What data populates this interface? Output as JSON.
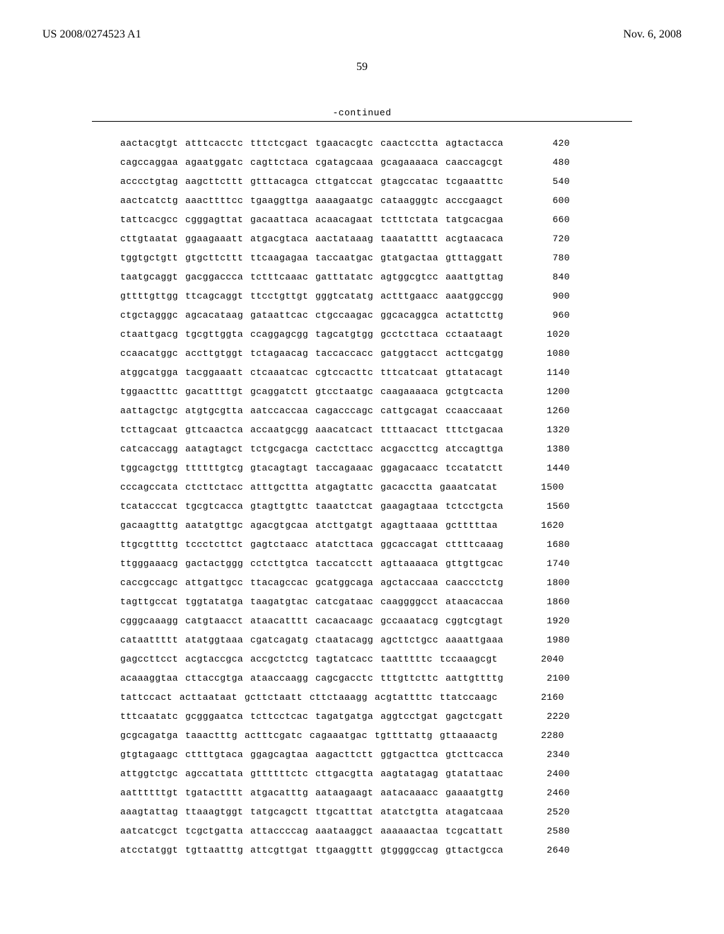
{
  "header": {
    "pub_num": "US 2008/0274523 A1",
    "pub_date": "Nov. 6, 2008"
  },
  "page_number": "59",
  "continued_label": "-continued",
  "sequence": {
    "font_family": "Courier New",
    "font_size_pt": 10,
    "color": "#000000",
    "rows": [
      {
        "g": [
          "aactacgtgt",
          "atttcacctc",
          "tttctcgact",
          "tgaacacgtc",
          "caactcctta",
          "agtactacca"
        ],
        "pos": "420"
      },
      {
        "g": [
          "cagccaggaa",
          "agaatggatc",
          "cagttctaca",
          "cgatagcaaa",
          "gcagaaaaca",
          "caaccagcgt"
        ],
        "pos": "480"
      },
      {
        "g": [
          "acccctgtag",
          "aagcttcttt",
          "gtttacagca",
          "cttgatccat",
          "gtagccatac",
          "tcgaaatttc"
        ],
        "pos": "540"
      },
      {
        "g": [
          "aactcatctg",
          "aaacttttcc",
          "tgaaggttga",
          "aaaagaatgc",
          "cataagggtc",
          "acccgaagct"
        ],
        "pos": "600"
      },
      {
        "g": [
          "tattcacgcc",
          "cgggagttat",
          "gacaattaca",
          "acaacagaat",
          "tctttctata",
          "tatgcacgaa"
        ],
        "pos": "660"
      },
      {
        "g": [
          "cttgtaatat",
          "ggaagaaatt",
          "atgacgtaca",
          "aactataaag",
          "taaatatttt",
          "acgtaacaca"
        ],
        "pos": "720"
      },
      {
        "g": [
          "tggtgctgtt",
          "gtgcttcttt",
          "ttcaagagaa",
          "taccaatgac",
          "gtatgactaa",
          "gtttaggatt"
        ],
        "pos": "780"
      },
      {
        "g": [
          "taatgcaggt",
          "gacggaccca",
          "tctttcaaac",
          "gatttatatc",
          "agtggcgtcc",
          "aaattgttag"
        ],
        "pos": "840"
      },
      {
        "g": [
          "gttttgttgg",
          "ttcagcaggt",
          "ttcctgttgt",
          "gggtcatatg",
          "actttgaacc",
          "aaatggccgg"
        ],
        "pos": "900"
      },
      {
        "g": [
          "ctgctagggc",
          "agcacataag",
          "gataattcac",
          "ctgccaagac",
          "ggcacaggca",
          "actattcttg"
        ],
        "pos": "960"
      },
      {
        "g": [
          "ctaattgacg",
          "tgcgttggta",
          "ccaggagcgg",
          "tagcatgtgg",
          "gcctcttaca",
          "cctaataagt"
        ],
        "pos": "1020"
      },
      {
        "g": [
          "ccaacatggc",
          "accttgtggt",
          "tctagaacag",
          "taccaccacc",
          "gatggtacct",
          "acttcgatgg"
        ],
        "pos": "1080"
      },
      {
        "g": [
          "atggcatgga",
          "tacggaaatt",
          "ctcaaatcac",
          "cgtccacttc",
          "tttcatcaat",
          "gttatacagt"
        ],
        "pos": "1140"
      },
      {
        "g": [
          "tggaactttc",
          "gacattttgt",
          "gcaggatctt",
          "gtcctaatgc",
          "caagaaaaca",
          "gctgtcacta"
        ],
        "pos": "1200"
      },
      {
        "g": [
          "aattagctgc",
          "atgtgcgtta",
          "aatccaccaa",
          "cagacccagc",
          "cattgcagat",
          "ccaaccaaat"
        ],
        "pos": "1260"
      },
      {
        "g": [
          "tcttagcaat",
          "gttcaactca",
          "accaatgcgg",
          "aaacatcact",
          "ttttaacact",
          "tttctgacaa"
        ],
        "pos": "1320"
      },
      {
        "g": [
          "catcaccagg",
          "aatagtagct",
          "tctgcgacga",
          "cactcttacc",
          "acgaccttcg",
          "atccagttga"
        ],
        "pos": "1380"
      },
      {
        "g": [
          "tggcagctgg",
          "ttttttgtcg",
          "gtacagtagt",
          "taccagaaac",
          "ggagacaacc",
          "tccatatctt"
        ],
        "pos": "1440"
      },
      {
        "g": [
          "cccagccata",
          "ctcttctacc",
          "atttgcttta",
          "atgagtattc",
          "gacacctta",
          "gaaatcatat"
        ],
        "pos": "1500"
      },
      {
        "g": [
          "tcatacccat",
          "tgcgtcacca",
          "gtagttgttc",
          "taaatctcat",
          "gaagagtaaa",
          "tctcctgcta"
        ],
        "pos": "1560"
      },
      {
        "g": [
          "gacaagtttg",
          "aatatgttgc",
          "agacgtgcaa",
          "atcttgatgt",
          "agagttaaaa",
          "gctttttaa"
        ],
        "pos": "1620"
      },
      {
        "g": [
          "ttgcgttttg",
          "tccctcttct",
          "gagtctaacc",
          "atatcttaca",
          "ggcaccagat",
          "cttttcaaag"
        ],
        "pos": "1680"
      },
      {
        "g": [
          "ttgggaaacg",
          "gactactggg",
          "cctcttgtca",
          "taccatcctt",
          "agttaaaaca",
          "gttgttgcac"
        ],
        "pos": "1740"
      },
      {
        "g": [
          "caccgccagc",
          "attgattgcc",
          "ttacagccac",
          "gcatggcaga",
          "agctaccaaa",
          "caaccctctg"
        ],
        "pos": "1800"
      },
      {
        "g": [
          "tagttgccat",
          "tggtatatga",
          "taagatgtac",
          "catcgataac",
          "caaggggcct",
          "ataacaccaa"
        ],
        "pos": "1860"
      },
      {
        "g": [
          "cgggcaaagg",
          "catgtaacct",
          "ataacatttt",
          "cacaacaagc",
          "gccaaatacg",
          "cggtcgtagt"
        ],
        "pos": "1920"
      },
      {
        "g": [
          "cataattttt",
          "atatggtaaa",
          "cgatcagatg",
          "ctaatacagg",
          "agcttctgcc",
          "aaaattgaaa"
        ],
        "pos": "1980"
      },
      {
        "g": [
          "gagccttcct",
          "acgtaccgca",
          "accgctctcg",
          "tagtatcacc",
          "taatttttc",
          "tccaaagcgt"
        ],
        "pos": "2040"
      },
      {
        "g": [
          "acaaaggtaa",
          "cttaccgtga",
          "ataaccaagg",
          "cagcgacctc",
          "tttgttcttc",
          "aattgttttg"
        ],
        "pos": "2100"
      },
      {
        "g": [
          "tattccact",
          "acttaataat",
          "gcttctaatt",
          "cttctaaagg",
          "acgtattttc",
          "ttatccaagc"
        ],
        "pos": "2160"
      },
      {
        "g": [
          "tttcaatatc",
          "gcgggaatca",
          "tcttcctcac",
          "tagatgatga",
          "aggtcctgat",
          "gagctcgatt"
        ],
        "pos": "2220"
      },
      {
        "g": [
          "gcgcagatga",
          "taaactttg",
          "actttcgatc",
          "cagaaatgac",
          "tgttttattg",
          "gttaaaactg"
        ],
        "pos": "2280"
      },
      {
        "g": [
          "gtgtagaagc",
          "cttttgtaca",
          "ggagcagtaa",
          "aagacttctt",
          "ggtgacttca",
          "gtcttcacca"
        ],
        "pos": "2340"
      },
      {
        "g": [
          "attggtctgc",
          "agccattata",
          "gttttttctc",
          "cttgacgtta",
          "aagtatagag",
          "gtatattaac"
        ],
        "pos": "2400"
      },
      {
        "g": [
          "aattttttgt",
          "tgatactttt",
          "atgacatttg",
          "aataagaagt",
          "aatacaaacc",
          "gaaaatgttg"
        ],
        "pos": "2460"
      },
      {
        "g": [
          "aaagtattag",
          "ttaaagtggt",
          "tatgcagctt",
          "ttgcatttat",
          "atatctgtta",
          "atagatcaaa"
        ],
        "pos": "2520"
      },
      {
        "g": [
          "aatcatcgct",
          "tcgctgatta",
          "attaccccag",
          "aaataaggct",
          "aaaaaactaa",
          "tcgcattatt"
        ],
        "pos": "2580"
      },
      {
        "g": [
          "atcctatggt",
          "tgttaatttg",
          "attcgttgat",
          "ttgaaggttt",
          "gtggggccag",
          "gttactgcca"
        ],
        "pos": "2640"
      }
    ]
  }
}
